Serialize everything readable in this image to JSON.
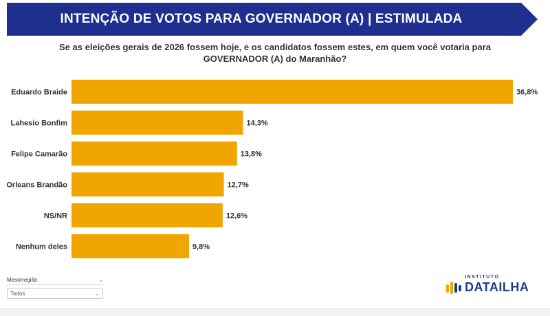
{
  "header": {
    "title": "INTENÇÃO DE VOTOS PARA GOVERNADOR (A) | ESTIMULADA",
    "background_color": "#1f2f8f"
  },
  "question": "Se as eleições gerais de 2026 fossem hoje, e os candidatos fossem estes, em quem você votaria para GOVERNADOR (A) do Maranhão?",
  "chart_data": {
    "type": "bar",
    "orientation": "horizontal",
    "categories": [
      "Eduardo Braide",
      "Lahesio Bonfim",
      "Felipe Camarão",
      "Orleans Brandão",
      "NS/NR",
      "Nenhum deles"
    ],
    "values": [
      36.8,
      14.3,
      13.8,
      12.7,
      12.6,
      9.8
    ],
    "value_labels": [
      "36,8%",
      "14,3%",
      "13,8%",
      "12,7%",
      "12,6%",
      "9,8%"
    ],
    "bar_color": "#f0a500",
    "xlim": [
      0,
      36.8
    ],
    "title": "",
    "xlabel": "",
    "ylabel": ""
  },
  "filter": {
    "label": "Mesorregião",
    "selected": "Todos"
  },
  "logo": {
    "small_text": "INSTITUTO",
    "name": "DATAILHA"
  }
}
